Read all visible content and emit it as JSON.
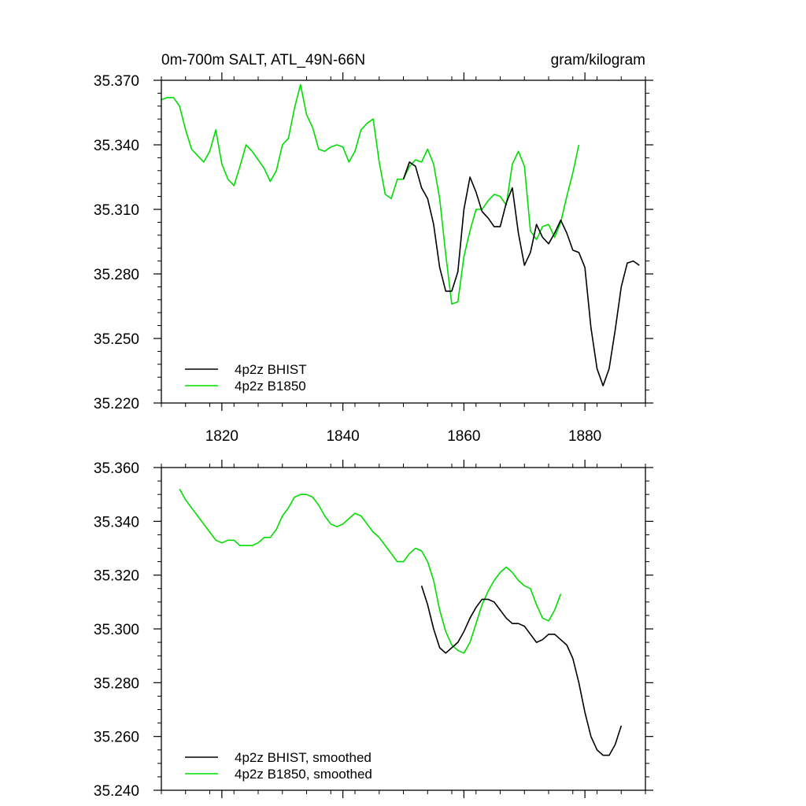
{
  "chart_data": [
    {
      "type": "line",
      "title_left": "0m-700m SALT, ATL_49N-66N",
      "title_right": "gram/kilogram",
      "xlim": [
        1810,
        1890
      ],
      "ylim": [
        35.22,
        35.37
      ],
      "yticks": [
        35.22,
        35.25,
        35.28,
        35.31,
        35.34,
        35.37
      ],
      "ytick_labels": [
        "35.220",
        "35.250",
        "35.280",
        "35.310",
        "35.340",
        "35.370"
      ],
      "xticks": [
        1820,
        1840,
        1860,
        1880
      ],
      "xtick_labels": [
        "1820",
        "1840",
        "1860",
        "1880"
      ],
      "legend_position": "bottom-left",
      "series": [
        {
          "name": "4p2z BHIST",
          "color": "#000000",
          "x": [
            1850,
            1851,
            1852,
            1853,
            1854,
            1855,
            1856,
            1857,
            1858,
            1859,
            1860,
            1861,
            1862,
            1863,
            1864,
            1865,
            1866,
            1867,
            1868,
            1869,
            1870,
            1871,
            1872,
            1873,
            1874,
            1875,
            1876,
            1877,
            1878,
            1879,
            1880,
            1881,
            1882,
            1883,
            1884,
            1885,
            1886,
            1887,
            1888,
            1889
          ],
          "y": [
            35.324,
            35.332,
            35.33,
            35.32,
            35.315,
            35.303,
            35.283,
            35.272,
            35.272,
            35.281,
            35.31,
            35.325,
            35.318,
            35.309,
            35.306,
            35.302,
            35.302,
            35.313,
            35.32,
            35.299,
            35.284,
            35.29,
            35.303,
            35.297,
            35.294,
            35.299,
            35.305,
            35.299,
            35.291,
            35.29,
            35.283,
            35.255,
            35.236,
            35.228,
            35.236,
            35.254,
            35.274,
            35.285,
            35.286,
            35.284
          ]
        },
        {
          "name": "4p2z B1850",
          "color": "#00dd00",
          "x": [
            1810,
            1811,
            1812,
            1813,
            1814,
            1815,
            1816,
            1817,
            1818,
            1819,
            1820,
            1821,
            1822,
            1823,
            1824,
            1825,
            1826,
            1827,
            1828,
            1829,
            1830,
            1831,
            1832,
            1833,
            1834,
            1835,
            1836,
            1837,
            1838,
            1839,
            1840,
            1841,
            1842,
            1843,
            1844,
            1845,
            1846,
            1847,
            1848,
            1849,
            1850,
            1851,
            1852,
            1853,
            1854,
            1855,
            1856,
            1857,
            1858,
            1859,
            1860,
            1861,
            1862,
            1863,
            1864,
            1865,
            1866,
            1867,
            1868,
            1869,
            1870,
            1871,
            1872,
            1873,
            1874,
            1875,
            1876,
            1877,
            1878,
            1879
          ],
          "y": [
            35.361,
            35.362,
            35.362,
            35.358,
            35.347,
            35.338,
            35.335,
            35.332,
            35.337,
            35.347,
            35.331,
            35.324,
            35.321,
            35.33,
            35.34,
            35.337,
            35.333,
            35.329,
            35.323,
            35.328,
            35.34,
            35.343,
            35.357,
            35.368,
            35.354,
            35.348,
            35.338,
            35.337,
            35.339,
            35.34,
            35.339,
            35.332,
            35.337,
            35.347,
            35.35,
            35.352,
            35.332,
            35.317,
            35.315,
            35.324,
            35.324,
            35.33,
            35.333,
            35.332,
            35.338,
            35.331,
            35.315,
            35.289,
            35.266,
            35.267,
            35.288,
            35.3,
            35.31,
            35.31,
            35.314,
            35.317,
            35.316,
            35.312,
            35.331,
            35.337,
            35.33,
            35.3,
            35.296,
            35.302,
            35.303,
            35.297,
            35.304,
            35.316,
            35.327,
            35.34
          ]
        }
      ]
    },
    {
      "type": "line",
      "xlim": [
        1810,
        1890
      ],
      "ylim": [
        35.24,
        35.36
      ],
      "yticks": [
        35.24,
        35.26,
        35.28,
        35.3,
        35.32,
        35.34,
        35.36
      ],
      "ytick_labels": [
        "35.240",
        "35.260",
        "35.280",
        "35.300",
        "35.320",
        "35.340",
        "35.360"
      ],
      "xticks": [
        1820,
        1840,
        1860,
        1880
      ],
      "legend_position": "bottom-left",
      "series": [
        {
          "name": "4p2z BHIST, smoothed",
          "color": "#000000",
          "x": [
            1853,
            1854,
            1855,
            1856,
            1857,
            1858,
            1859,
            1860,
            1861,
            1862,
            1863,
            1864,
            1865,
            1866,
            1867,
            1868,
            1869,
            1870,
            1871,
            1872,
            1873,
            1874,
            1875,
            1876,
            1877,
            1878,
            1879,
            1880,
            1881,
            1882,
            1883,
            1884,
            1885,
            1886
          ],
          "y": [
            35.316,
            35.309,
            35.3,
            35.293,
            35.291,
            35.293,
            35.295,
            35.299,
            35.304,
            35.308,
            35.311,
            35.311,
            35.31,
            35.307,
            35.304,
            35.302,
            35.302,
            35.301,
            35.298,
            35.295,
            35.296,
            35.298,
            35.298,
            35.296,
            35.294,
            35.289,
            35.28,
            35.269,
            35.26,
            35.255,
            35.253,
            35.253,
            35.257,
            35.264
          ]
        },
        {
          "name": "4p2z B1850, smoothed",
          "color": "#00dd00",
          "x": [
            1813,
            1814,
            1815,
            1816,
            1817,
            1818,
            1819,
            1820,
            1821,
            1822,
            1823,
            1824,
            1825,
            1826,
            1827,
            1828,
            1829,
            1830,
            1831,
            1832,
            1833,
            1834,
            1835,
            1836,
            1837,
            1838,
            1839,
            1840,
            1841,
            1842,
            1843,
            1844,
            1845,
            1846,
            1847,
            1848,
            1849,
            1850,
            1851,
            1852,
            1853,
            1854,
            1855,
            1856,
            1857,
            1858,
            1859,
            1860,
            1861,
            1862,
            1863,
            1864,
            1865,
            1866,
            1867,
            1868,
            1869,
            1870,
            1871,
            1872,
            1873,
            1874,
            1875,
            1876
          ],
          "y": [
            35.352,
            35.348,
            35.345,
            35.342,
            35.339,
            35.336,
            35.333,
            35.332,
            35.333,
            35.333,
            35.331,
            35.331,
            35.331,
            35.332,
            35.334,
            35.334,
            35.337,
            35.342,
            35.345,
            35.349,
            35.35,
            35.35,
            35.349,
            35.346,
            35.342,
            35.339,
            35.338,
            35.339,
            35.341,
            35.343,
            35.342,
            35.339,
            35.336,
            35.334,
            35.331,
            35.328,
            35.325,
            35.325,
            35.328,
            35.33,
            35.329,
            35.325,
            35.318,
            35.307,
            35.299,
            35.294,
            35.292,
            35.291,
            35.295,
            35.302,
            35.309,
            35.314,
            35.318,
            35.321,
            35.323,
            35.321,
            35.318,
            35.316,
            35.315,
            35.309,
            35.304,
            35.303,
            35.307,
            35.313
          ]
        }
      ]
    }
  ]
}
